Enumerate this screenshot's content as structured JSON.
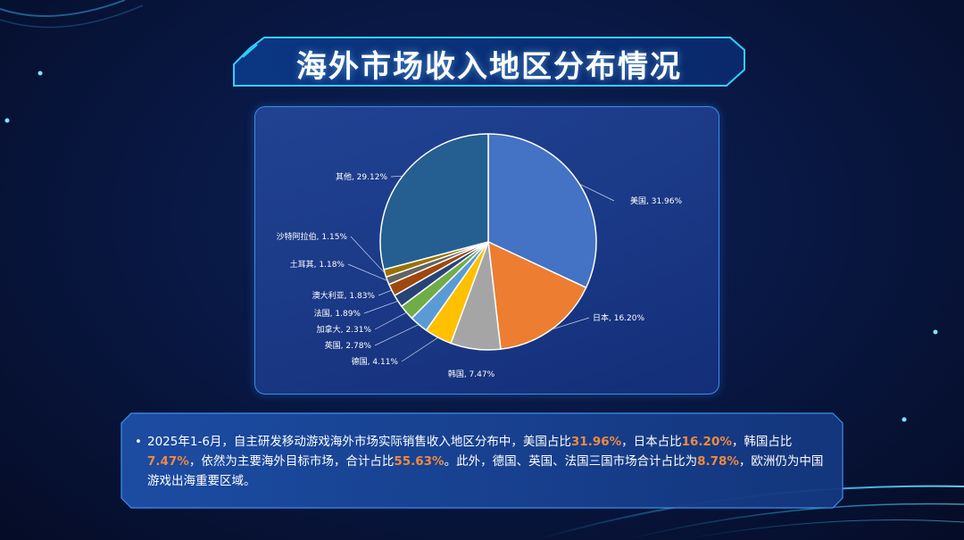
{
  "page": {
    "title": "海外市场收入地区分布情况"
  },
  "colors": {
    "highlight": "#f08a3e",
    "panel_border": "#3a8ee8",
    "title_frame": "#2fd0ff"
  },
  "chart_data": {
    "type": "pie",
    "title": "",
    "start_angle": "12 o'clock, clockwise",
    "slices": [
      {
        "label": "美国, 31.96%",
        "name": "美国",
        "value": 31.96,
        "color": "#4472c4"
      },
      {
        "label": "日本, 16.20%",
        "name": "日本",
        "value": 16.2,
        "color": "#ed7d31"
      },
      {
        "label": "韩国, 7.47%",
        "name": "韩国",
        "value": 7.47,
        "color": "#a5a5a5"
      },
      {
        "label": "德国, 4.11%",
        "name": "德国",
        "value": 4.11,
        "color": "#ffc000"
      },
      {
        "label": "英国, 2.78%",
        "name": "英国",
        "value": 2.78,
        "color": "#5b9bd5"
      },
      {
        "label": "加拿大, 2.31%",
        "name": "加拿大",
        "value": 2.31,
        "color": "#70ad47"
      },
      {
        "label": "法国, 1.89%",
        "name": "法国",
        "value": 1.89,
        "color": "#264478"
      },
      {
        "label": "澳大利亚, 1.83%",
        "name": "澳大利亚",
        "value": 1.83,
        "color": "#9e480e"
      },
      {
        "label": "土耳其, 1.18%",
        "name": "土耳其",
        "value": 1.18,
        "color": "#636363"
      },
      {
        "label": "沙特阿拉伯, 1.15%",
        "name": "沙特阿拉伯",
        "value": 1.15,
        "color": "#997300"
      },
      {
        "label": "其他, 29.12%",
        "name": "其他",
        "value": 29.12,
        "color": "#255e91"
      }
    ]
  },
  "note": {
    "bullet": "•",
    "segments": [
      {
        "text": "2025年1-6月，自主研发移动游戏海外市场实际销售收入地区分布中，美国占比",
        "hl": false
      },
      {
        "text": "31.96%",
        "hl": true
      },
      {
        "text": "，日本占比",
        "hl": false
      },
      {
        "text": "16.20%",
        "hl": true
      },
      {
        "text": "，韩国占比",
        "hl": false
      },
      {
        "text": "7.47%",
        "hl": true
      },
      {
        "text": "，依然为主要海外目标市场，合计占比",
        "hl": false
      },
      {
        "text": "55.63%",
        "hl": true
      },
      {
        "text": "。此外，德国、英国、法国三国市场合计占比为",
        "hl": false
      },
      {
        "text": "8.78%",
        "hl": true
      },
      {
        "text": "，欧洲仍为中国游戏出海重要区域。",
        "hl": false
      }
    ]
  }
}
